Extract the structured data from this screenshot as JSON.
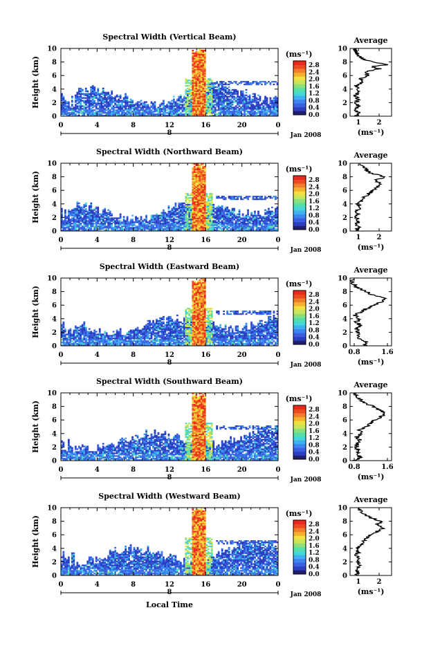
{
  "figure": {
    "xlabel": "Local Time",
    "date_label": "Jan 2008",
    "day_label": "8",
    "unit_label": "(ms⁻¹)",
    "average_title": "Average",
    "height_label": "Height (km)"
  },
  "colors": {
    "scale": [
      "#1f1f6e",
      "#2b3fc0",
      "#3a5fe0",
      "#3d85f0",
      "#3fb0f0",
      "#45d6d6",
      "#56e0a8",
      "#8be07a",
      "#c8e65a",
      "#f0e040",
      "#f6b030",
      "#f07d2a",
      "#ee4a22",
      "#e82a1c"
    ],
    "line": "#000000"
  },
  "chart_data": [
    {
      "type": "heatmap",
      "title": "Spectral Width (Vertical Beam)",
      "x_ticks": [
        "0",
        "4",
        "8",
        "12",
        "16",
        "20",
        "0"
      ],
      "xlim": [
        0,
        24
      ],
      "y_ticks": [
        "0",
        "2",
        "4",
        "6",
        "8",
        "10"
      ],
      "ylim": [
        0,
        10
      ],
      "colorbar_ticks": [
        "0.0",
        "0.4",
        "0.8",
        "1.2",
        "1.6",
        "2.0",
        "2.4",
        "2.8"
      ],
      "average": {
        "x_ticks": [
          "1",
          "2"
        ],
        "xlim": [
          0.6,
          2.6
        ],
        "y_ticks": [
          "0",
          "2",
          "4",
          "6",
          "8",
          "10"
        ],
        "profile": [
          [
            0,
            0.9
          ],
          [
            0.5,
            1.0
          ],
          [
            1,
            0.85
          ],
          [
            1.5,
            1.0
          ],
          [
            2,
            0.9
          ],
          [
            2.5,
            1.0
          ],
          [
            3,
            0.85
          ],
          [
            3.5,
            1.0
          ],
          [
            4,
            0.95
          ],
          [
            4.5,
            0.9
          ],
          [
            5,
            1.2
          ],
          [
            5.5,
            1.1
          ],
          [
            6,
            1.5
          ],
          [
            6.5,
            1.3
          ],
          [
            7,
            2.0
          ],
          [
            7.3,
            1.6
          ],
          [
            7.6,
            2.4
          ],
          [
            8,
            1.7
          ],
          [
            8.5,
            1.2
          ],
          [
            9,
            1.0
          ],
          [
            9.5,
            0.9
          ],
          [
            10,
            0.8
          ]
        ]
      }
    },
    {
      "type": "heatmap",
      "title": "Spectral Width (Northward Beam)",
      "x_ticks": [
        "0",
        "4",
        "8",
        "12",
        "16",
        "20",
        "0"
      ],
      "xlim": [
        0,
        24
      ],
      "y_ticks": [
        "0",
        "2",
        "4",
        "6",
        "8",
        "10"
      ],
      "ylim": [
        0,
        10
      ],
      "colorbar_ticks": [
        "0.0",
        "0.4",
        "0.8",
        "1.2",
        "1.6",
        "2.0",
        "2.4",
        "2.8"
      ],
      "average": {
        "x_ticks": [
          "1",
          "2"
        ],
        "xlim": [
          0.6,
          2.6
        ],
        "y_ticks": [
          "0",
          "2",
          "4",
          "6",
          "8",
          "10"
        ],
        "profile": [
          [
            0,
            0.85
          ],
          [
            0.5,
            1.0
          ],
          [
            1,
            0.9
          ],
          [
            1.5,
            1.0
          ],
          [
            2,
            0.9
          ],
          [
            2.5,
            1.0
          ],
          [
            3,
            0.9
          ],
          [
            3.5,
            1.1
          ],
          [
            4,
            1.0
          ],
          [
            4.5,
            1.2
          ],
          [
            5,
            1.3
          ],
          [
            5.5,
            1.5
          ],
          [
            6,
            1.7
          ],
          [
            6.5,
            1.9
          ],
          [
            7,
            2.1
          ],
          [
            7.5,
            1.8
          ],
          [
            8,
            2.3
          ],
          [
            8.5,
            1.6
          ],
          [
            9,
            1.4
          ],
          [
            9.5,
            1.2
          ],
          [
            10,
            1.0
          ]
        ]
      }
    },
    {
      "type": "heatmap",
      "title": "Spectral Width (Eastward Beam)",
      "x_ticks": [
        "0",
        "4",
        "8",
        "12",
        "16",
        "20",
        "0"
      ],
      "xlim": [
        0,
        24
      ],
      "y_ticks": [
        "0",
        "2",
        "4",
        "6",
        "8",
        "10"
      ],
      "ylim": [
        0,
        10
      ],
      "colorbar_ticks": [
        "0.0",
        "0.4",
        "0.8",
        "1.2",
        "1.6",
        "2.0",
        "2.4",
        "2.8"
      ],
      "average": {
        "x_ticks": [
          "0.8",
          "1.6"
        ],
        "xlim": [
          0.7,
          1.7
        ],
        "y_ticks": [
          "0",
          "2",
          "4",
          "6",
          "8",
          "10"
        ],
        "profile": [
          [
            0,
            1.05
          ],
          [
            0.5,
            1.1
          ],
          [
            1,
            0.95
          ],
          [
            1.5,
            0.9
          ],
          [
            2,
            0.9
          ],
          [
            2.5,
            0.85
          ],
          [
            3,
            0.95
          ],
          [
            3.5,
            0.85
          ],
          [
            4,
            0.9
          ],
          [
            4.5,
            0.8
          ],
          [
            5,
            0.95
          ],
          [
            5.5,
            1.1
          ],
          [
            6,
            1.3
          ],
          [
            6.5,
            1.45
          ],
          [
            7,
            1.6
          ],
          [
            7.5,
            1.25
          ],
          [
            8,
            1.1
          ],
          [
            8.5,
            0.9
          ],
          [
            9,
            0.8
          ],
          [
            9.5,
            0.75
          ],
          [
            10,
            0.75
          ]
        ]
      }
    },
    {
      "type": "heatmap",
      "title": "Spectral Width (Southward Beam)",
      "x_ticks": [
        "0",
        "4",
        "8",
        "12",
        "16",
        "20",
        "0"
      ],
      "xlim": [
        0,
        24
      ],
      "y_ticks": [
        "0",
        "2",
        "4",
        "6",
        "8",
        "10"
      ],
      "ylim": [
        0,
        10
      ],
      "colorbar_ticks": [
        "0.0",
        "0.4",
        "0.8",
        "1.2",
        "1.6",
        "2.0",
        "2.4",
        "2.8"
      ],
      "average": {
        "x_ticks": [
          "0.8",
          "1.6"
        ],
        "xlim": [
          0.7,
          1.7
        ],
        "y_ticks": [
          "0",
          "2",
          "4",
          "6",
          "8",
          "10"
        ],
        "profile": [
          [
            0,
            0.8
          ],
          [
            0.5,
            0.95
          ],
          [
            1,
            0.85
          ],
          [
            1.5,
            0.9
          ],
          [
            2,
            0.85
          ],
          [
            2.5,
            0.9
          ],
          [
            3,
            0.95
          ],
          [
            3.5,
            0.85
          ],
          [
            4,
            1.0
          ],
          [
            4.5,
            0.9
          ],
          [
            5,
            1.1
          ],
          [
            5.5,
            1.2
          ],
          [
            6,
            1.3
          ],
          [
            6.5,
            1.45
          ],
          [
            7,
            1.55
          ],
          [
            7.5,
            1.4
          ],
          [
            8,
            1.25
          ],
          [
            8.5,
            1.05
          ],
          [
            9,
            0.95
          ],
          [
            9.5,
            0.85
          ],
          [
            10,
            0.8
          ]
        ]
      }
    },
    {
      "type": "heatmap",
      "title": "Spectral Width (Westward Beam)",
      "x_ticks": [
        "0",
        "4",
        "8",
        "12",
        "16",
        "20",
        "0"
      ],
      "xlim": [
        0,
        24
      ],
      "y_ticks": [
        "0",
        "2",
        "4",
        "6",
        "8",
        "10"
      ],
      "ylim": [
        0,
        10
      ],
      "colorbar_ticks": [
        "0.0",
        "0.4",
        "0.8",
        "1.2",
        "1.6",
        "2.0",
        "2.4",
        "2.8"
      ],
      "average": {
        "x_ticks": [
          "1",
          "2"
        ],
        "xlim": [
          0.6,
          2.6
        ],
        "y_ticks": [
          "0",
          "2",
          "4",
          "6",
          "8",
          "10"
        ],
        "profile": [
          [
            0,
            0.9
          ],
          [
            0.5,
            1.0
          ],
          [
            1,
            0.9
          ],
          [
            1.5,
            1.05
          ],
          [
            2,
            0.95
          ],
          [
            2.5,
            1.0
          ],
          [
            3,
            0.9
          ],
          [
            3.5,
            1.0
          ],
          [
            4,
            0.95
          ],
          [
            4.5,
            1.1
          ],
          [
            5,
            1.2
          ],
          [
            5.5,
            1.4
          ],
          [
            6,
            1.6
          ],
          [
            6.5,
            1.9
          ],
          [
            7,
            2.2
          ],
          [
            7.5,
            1.9
          ],
          [
            8,
            2.1
          ],
          [
            8.5,
            1.6
          ],
          [
            9,
            1.3
          ],
          [
            9.5,
            1.1
          ],
          [
            10,
            0.9
          ]
        ]
      }
    }
  ]
}
